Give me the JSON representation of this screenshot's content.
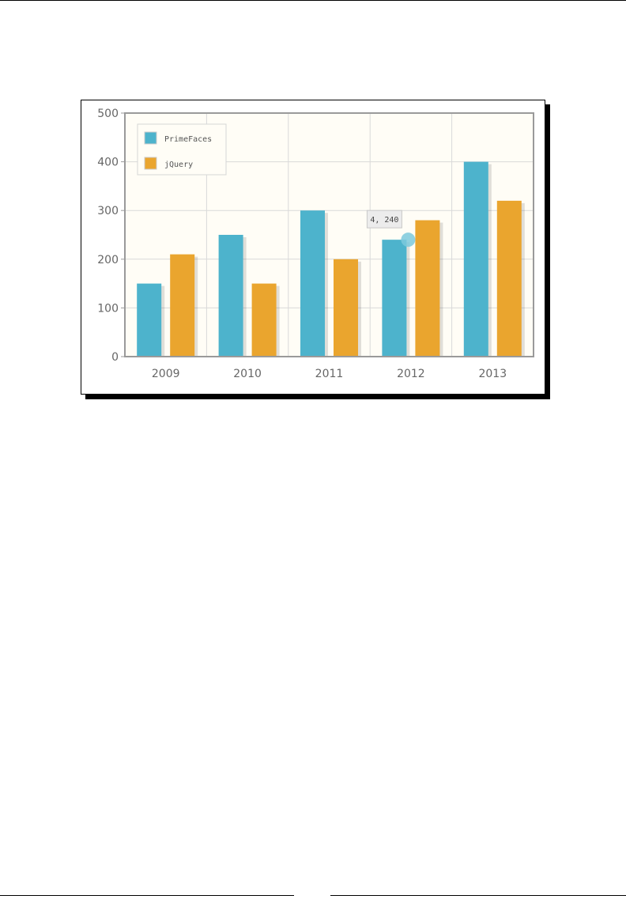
{
  "chart_data": {
    "type": "bar",
    "title": "",
    "xlabel": "",
    "ylabel": "",
    "categories": [
      "2009",
      "2010",
      "2011",
      "2012",
      "2013"
    ],
    "series": [
      {
        "name": "PrimeFaces",
        "values": [
          150,
          250,
          300,
          240,
          400
        ],
        "color": "#4db3cc"
      },
      {
        "name": "jQuery",
        "values": [
          210,
          150,
          200,
          280,
          320
        ],
        "color": "#eaa52e"
      }
    ],
    "ylim": [
      0,
      500
    ],
    "yticks": [
      0,
      100,
      200,
      300,
      400,
      500
    ],
    "grid": true,
    "legend_position": "top-left",
    "plot_background": "#fffdf6",
    "tooltip": {
      "text": "4, 240",
      "series": "PrimeFaces",
      "category": "2012"
    }
  }
}
